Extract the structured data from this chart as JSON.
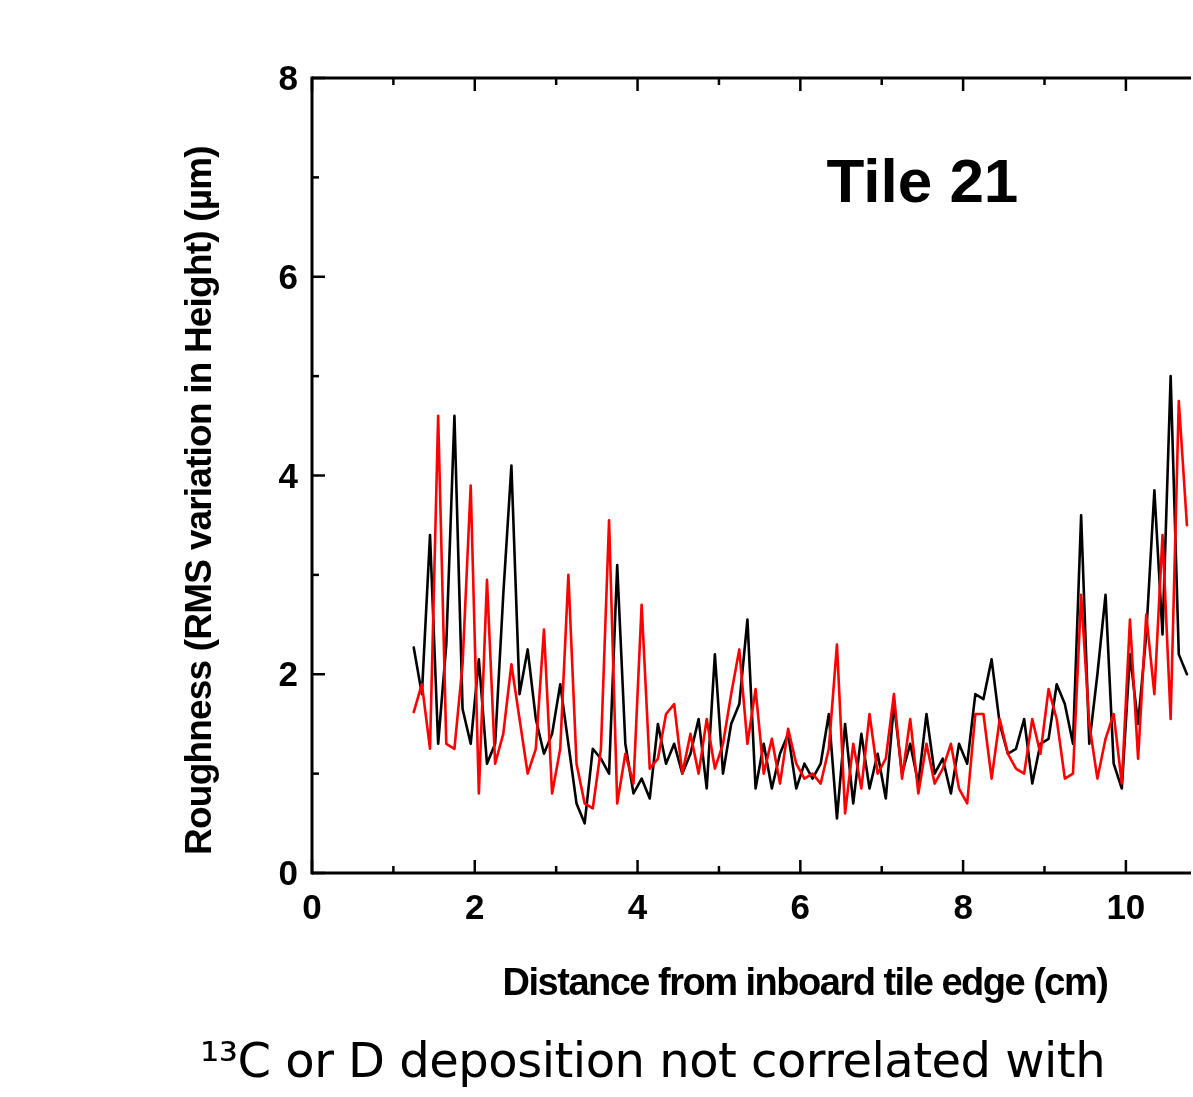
{
  "chart_data": {
    "type": "line",
    "title": "Tile 21",
    "xlabel": "Distance from inboard tile edge (cm)",
    "ylabel": "Roughness (RMS variation in Height) (µm)",
    "annotations": [
      "¹³C or D deposition not correlated with"
    ],
    "xlim": [
      0,
      10.8
    ],
    "ylim": [
      0,
      8
    ],
    "xticks": [
      0,
      {
        "value": 1,
        "label": null
      },
      2,
      {
        "value": 3,
        "label": null
      },
      4,
      {
        "value": 5,
        "label": null
      },
      6,
      {
        "value": 7,
        "label": null
      },
      8,
      {
        "value": 9,
        "label": null
      },
      10
    ],
    "yticks": [
      0,
      {
        "value": 1,
        "label": null
      },
      2,
      {
        "value": 3,
        "label": null
      },
      4,
      {
        "value": 5,
        "label": null
      },
      6,
      {
        "value": 7,
        "label": null
      },
      8
    ],
    "x": [
      1.25,
      1.35,
      1.45,
      1.55,
      1.65,
      1.75,
      1.85,
      1.95,
      2.05,
      2.15,
      2.25,
      2.35,
      2.45,
      2.55,
      2.65,
      2.75,
      2.85,
      2.95,
      3.05,
      3.15,
      3.25,
      3.35,
      3.45,
      3.55,
      3.65,
      3.75,
      3.85,
      3.95,
      4.05,
      4.15,
      4.25,
      4.35,
      4.45,
      4.55,
      4.65,
      4.75,
      4.85,
      4.95,
      5.05,
      5.15,
      5.25,
      5.35,
      5.45,
      5.55,
      5.65,
      5.75,
      5.85,
      5.95,
      6.05,
      6.15,
      6.25,
      6.35,
      6.45,
      6.55,
      6.65,
      6.75,
      6.85,
      6.95,
      7.05,
      7.15,
      7.25,
      7.35,
      7.45,
      7.55,
      7.65,
      7.75,
      7.85,
      7.95,
      8.05,
      8.15,
      8.25,
      8.35,
      8.45,
      8.55,
      8.65,
      8.75,
      8.85,
      8.95,
      9.05,
      9.15,
      9.25,
      9.35,
      9.45,
      9.55,
      9.65,
      9.75,
      9.85,
      9.95,
      10.05,
      10.15,
      10.25,
      10.35,
      10.45,
      10.55,
      10.65,
      10.75
    ],
    "series": [
      {
        "color": "#000000",
        "values": [
          2.27,
          1.8,
          3.4,
          1.3,
          2.3,
          4.6,
          1.65,
          1.3,
          2.15,
          1.1,
          1.3,
          2.8,
          4.1,
          1.8,
          2.25,
          1.55,
          1.2,
          1.4,
          1.9,
          1.3,
          0.7,
          0.5,
          1.25,
          1.15,
          1.0,
          3.1,
          1.3,
          0.8,
          0.95,
          0.75,
          1.5,
          1.1,
          1.3,
          1.0,
          1.2,
          1.55,
          0.85,
          2.2,
          1.0,
          1.5,
          1.7,
          2.55,
          0.85,
          1.3,
          0.85,
          1.2,
          1.4,
          0.85,
          1.1,
          0.95,
          1.1,
          1.6,
          0.55,
          1.5,
          0.7,
          1.4,
          0.85,
          1.2,
          0.75,
          1.7,
          1.0,
          1.3,
          0.9,
          1.6,
          1.0,
          1.15,
          0.8,
          1.3,
          1.1,
          1.8,
          1.75,
          2.15,
          1.5,
          1.2,
          1.25,
          1.55,
          0.9,
          1.3,
          1.35,
          1.9,
          1.7,
          1.3,
          3.6,
          1.3,
          2.0,
          2.8,
          1.1,
          0.85,
          2.2,
          1.5,
          2.4,
          3.85,
          2.4,
          5.0,
          2.2,
          2.0
        ]
      },
      {
        "color": "#ff0000",
        "values": [
          1.62,
          1.9,
          1.25,
          4.6,
          1.3,
          1.25,
          2.1,
          3.9,
          0.8,
          2.95,
          1.1,
          1.4,
          2.1,
          1.55,
          1.0,
          1.25,
          2.45,
          0.8,
          1.25,
          3.0,
          1.1,
          0.7,
          0.65,
          1.25,
          3.55,
          0.7,
          1.2,
          0.9,
          2.7,
          1.05,
          1.15,
          1.6,
          1.7,
          1.0,
          1.4,
          1.0,
          1.55,
          1.05,
          1.3,
          1.8,
          2.25,
          1.3,
          1.85,
          1.0,
          1.35,
          0.9,
          1.45,
          1.1,
          0.95,
          1.0,
          0.9,
          1.25,
          2.3,
          0.6,
          1.3,
          0.85,
          1.6,
          1.0,
          1.15,
          1.8,
          0.95,
          1.55,
          0.8,
          1.3,
          0.9,
          1.05,
          1.3,
          0.85,
          0.7,
          1.6,
          1.6,
          0.95,
          1.55,
          1.2,
          1.05,
          1.0,
          1.55,
          1.2,
          1.85,
          1.55,
          0.95,
          1.0,
          2.8,
          1.5,
          0.95,
          1.35,
          1.6,
          0.9,
          2.55,
          1.15,
          2.6,
          1.8,
          3.4,
          1.55,
          4.75,
          3.5
        ]
      }
    ]
  }
}
